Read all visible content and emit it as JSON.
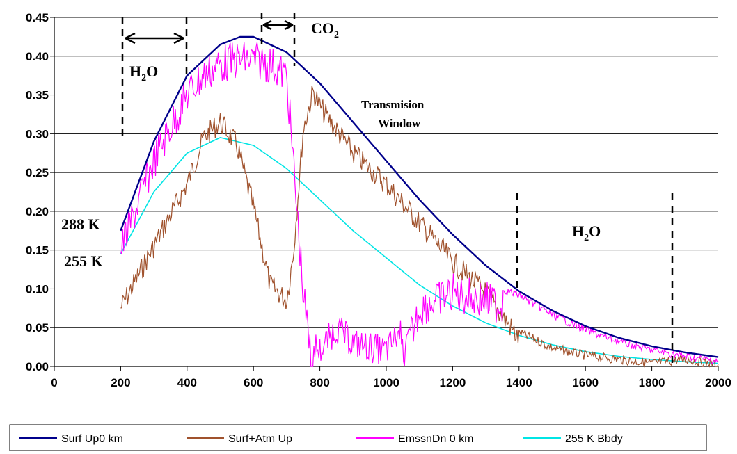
{
  "chart_data": {
    "type": "line",
    "title": "",
    "xlabel": "",
    "ylabel": "",
    "xlim": [
      0,
      2000
    ],
    "ylim": [
      0,
      0.45
    ],
    "x_ticks": [
      "0",
      "200",
      "400",
      "600",
      "800",
      "1000",
      "1200",
      "1400",
      "1600",
      "1800",
      "2000"
    ],
    "y_ticks": [
      "0.00",
      "0.05",
      "0.10",
      "0.15",
      "0.20",
      "0.25",
      "0.30",
      "0.35",
      "0.40",
      "0.45"
    ],
    "grid": "horizontal",
    "legend_position": "bottom",
    "series": [
      {
        "name": "Surf Up0 km",
        "color": "#00008B",
        "x": [
          200,
          300,
          400,
          500,
          560,
          600,
          700,
          800,
          900,
          1000,
          1100,
          1200,
          1300,
          1400,
          1500,
          1600,
          1700,
          1800,
          1900,
          2000
        ],
        "y": [
          0.175,
          0.29,
          0.375,
          0.415,
          0.425,
          0.425,
          0.405,
          0.365,
          0.315,
          0.265,
          0.215,
          0.17,
          0.13,
          0.097,
          0.072,
          0.052,
          0.037,
          0.026,
          0.018,
          0.012
        ]
      },
      {
        "name": "Surf+Atm Up",
        "color": "#A0522D",
        "x": [
          200,
          250,
          300,
          350,
          400,
          450,
          500,
          550,
          600,
          650,
          700,
          720,
          750,
          780,
          800,
          850,
          900,
          1000,
          1100,
          1200,
          1300,
          1400,
          1500,
          1600,
          1700,
          1800,
          1900,
          2000
        ],
        "y": [
          0.09,
          0.13,
          0.17,
          0.21,
          0.25,
          0.31,
          0.33,
          0.3,
          0.22,
          0.12,
          0.1,
          0.16,
          0.32,
          0.37,
          0.35,
          0.32,
          0.29,
          0.25,
          0.2,
          0.15,
          0.11,
          0.05,
          0.03,
          0.02,
          0.015,
          0.01,
          0.015,
          0.008
        ]
      },
      {
        "name": "EmssnDn 0 km",
        "color": "#FF00FF",
        "x": [
          200,
          300,
          400,
          450,
          500,
          550,
          600,
          650,
          700,
          750,
          780,
          800,
          850,
          900,
          1000,
          1050,
          1100,
          1200,
          1300,
          1400,
          1500,
          1600,
          1700,
          1800,
          1900,
          2000
        ],
        "y": [
          0.175,
          0.29,
          0.375,
          0.4,
          0.415,
          0.42,
          0.42,
          0.415,
          0.4,
          0.12,
          0.01,
          0.0,
          0.03,
          0.01,
          0.0,
          0.03,
          0.1,
          0.12,
          0.11,
          0.097,
          0.072,
          0.052,
          0.037,
          0.026,
          0.018,
          0.012
        ]
      },
      {
        "name": "255 K Bbdy",
        "color": "#00E5E5",
        "x": [
          200,
          300,
          400,
          500,
          600,
          700,
          800,
          900,
          1000,
          1100,
          1200,
          1300,
          1400,
          1500,
          1600,
          1700,
          1800,
          1900,
          2000
        ],
        "y": [
          0.145,
          0.225,
          0.275,
          0.295,
          0.285,
          0.255,
          0.215,
          0.175,
          0.14,
          0.105,
          0.078,
          0.056,
          0.04,
          0.028,
          0.019,
          0.013,
          0.009,
          0.006,
          0.004
        ]
      }
    ],
    "annotations": {
      "h2o_left": "H2O",
      "co2": "CO2",
      "window_line1": "Transmision",
      "window_line2": "Window",
      "h2o_right": "H2O",
      "label_288": "288 K",
      "label_255": "255 K"
    }
  }
}
